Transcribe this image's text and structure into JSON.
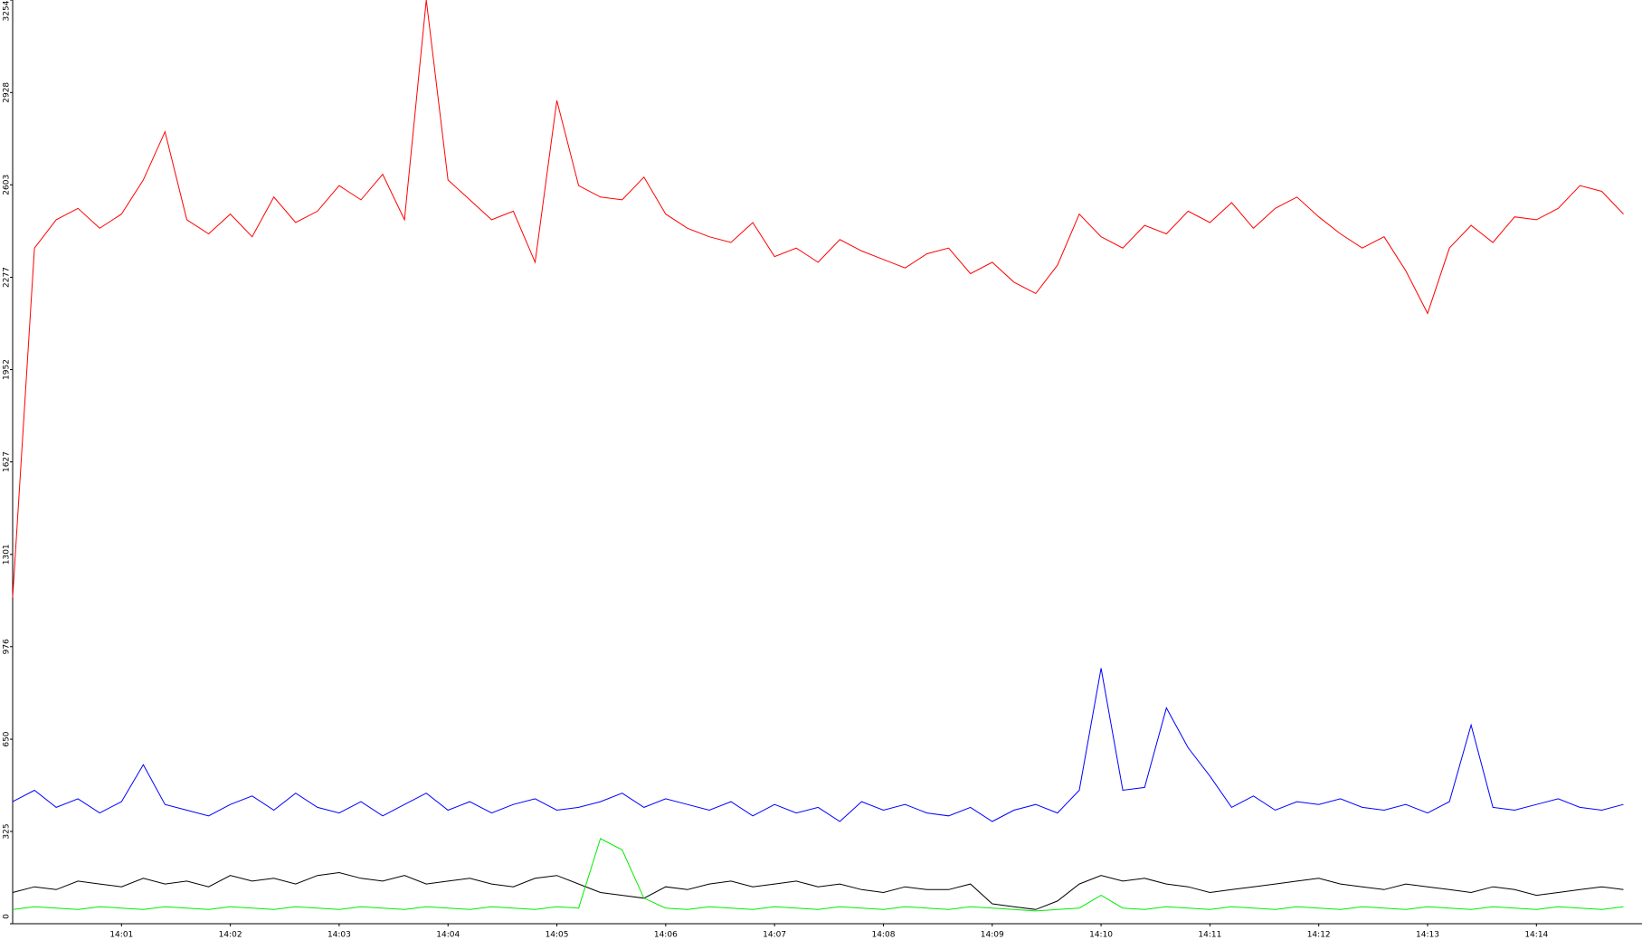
{
  "chart_data": {
    "type": "line",
    "x": [
      0,
      0.2,
      0.4,
      0.6,
      0.8,
      1,
      1.2,
      1.4,
      1.6,
      1.8,
      2,
      2.2,
      2.4,
      2.6,
      2.8,
      3,
      3.2,
      3.4,
      3.6,
      3.8,
      4,
      4.2,
      4.4,
      4.6,
      4.8,
      5,
      5.2,
      5.4,
      5.6,
      5.8,
      6,
      6.2,
      6.4,
      6.6,
      6.8,
      7,
      7.2,
      7.4,
      7.6,
      7.8,
      8,
      8.2,
      8.4,
      8.6,
      8.8,
      9,
      9.2,
      9.4,
      9.6,
      9.8,
      10,
      10.2,
      10.4,
      10.6,
      10.8,
      11,
      11.2,
      11.4,
      11.6,
      11.8,
      12,
      12.2,
      12.4,
      12.6,
      12.8,
      13,
      13.2,
      13.4,
      13.6,
      13.8,
      14,
      14.2,
      14.4,
      14.6,
      14.8
    ],
    "series": [
      {
        "color": "#ff0000",
        "values": [
          1150,
          2380,
          2480,
          2520,
          2450,
          2500,
          2620,
          2790,
          2480,
          2430,
          2500,
          2420,
          2560,
          2470,
          2510,
          2600,
          2550,
          2640,
          2480,
          3254,
          2620,
          2550,
          2480,
          2510,
          2330,
          2900,
          2600,
          2560,
          2550,
          2630,
          2500,
          2450,
          2420,
          2400,
          2470,
          2350,
          2380,
          2330,
          2410,
          2370,
          2340,
          2310,
          2360,
          2380,
          2290,
          2330,
          2260,
          2220,
          2320,
          2500,
          2420,
          2380,
          2460,
          2430,
          2510,
          2470,
          2540,
          2450,
          2520,
          2560,
          2490,
          2430,
          2380,
          2420,
          2300,
          2150,
          2380,
          2460,
          2400,
          2490,
          2480,
          2520,
          2600,
          2580,
          2500
        ]
      },
      {
        "color": "#0000ff",
        "values": [
          430,
          470,
          410,
          440,
          390,
          430,
          560,
          420,
          400,
          380,
          420,
          450,
          400,
          460,
          410,
          390,
          430,
          380,
          420,
          460,
          400,
          430,
          390,
          420,
          440,
          400,
          410,
          430,
          460,
          410,
          440,
          420,
          400,
          430,
          380,
          420,
          390,
          410,
          360,
          430,
          400,
          420,
          390,
          380,
          410,
          360,
          400,
          420,
          390,
          470,
          900,
          470,
          480,
          760,
          620,
          520,
          410,
          450,
          400,
          430,
          420,
          440,
          410,
          400,
          420,
          390,
          430,
          700,
          410,
          400,
          420,
          440,
          410,
          400,
          420
        ]
      },
      {
        "color": "#000000",
        "values": [
          110,
          130,
          120,
          150,
          140,
          130,
          160,
          140,
          150,
          130,
          170,
          150,
          160,
          140,
          170,
          180,
          160,
          150,
          170,
          140,
          150,
          160,
          140,
          130,
          160,
          170,
          140,
          110,
          100,
          90,
          130,
          120,
          140,
          150,
          130,
          140,
          150,
          130,
          140,
          120,
          110,
          130,
          120,
          120,
          140,
          70,
          60,
          50,
          80,
          140,
          170,
          150,
          160,
          140,
          130,
          110,
          120,
          130,
          140,
          150,
          160,
          140,
          130,
          120,
          140,
          130,
          120,
          110,
          130,
          120,
          100,
          110,
          120,
          130,
          120
        ]
      },
      {
        "color": "#00ee00",
        "values": [
          50,
          60,
          55,
          50,
          60,
          55,
          50,
          60,
          55,
          50,
          60,
          55,
          50,
          60,
          55,
          50,
          60,
          55,
          50,
          60,
          55,
          50,
          60,
          55,
          50,
          60,
          55,
          300,
          260,
          90,
          55,
          50,
          60,
          55,
          50,
          60,
          55,
          50,
          60,
          55,
          50,
          60,
          55,
          50,
          60,
          55,
          50,
          45,
          50,
          55,
          100,
          55,
          50,
          60,
          55,
          50,
          60,
          55,
          50,
          60,
          55,
          50,
          60,
          55,
          50,
          60,
          55,
          50,
          60,
          55,
          50,
          60,
          55,
          50,
          60
        ]
      }
    ],
    "xlim": [
      0,
      14.97
    ],
    "ylim": [
      0,
      3254
    ],
    "yticks": [
      0,
      325,
      650,
      976,
      1301,
      1627,
      1952,
      2277,
      2603,
      2928,
      3254
    ],
    "xticks": [
      {
        "value": 1,
        "label": "14:01"
      },
      {
        "value": 2,
        "label": "14:02"
      },
      {
        "value": 3,
        "label": "14:03"
      },
      {
        "value": 4,
        "label": "14:04"
      },
      {
        "value": 5,
        "label": "14:05"
      },
      {
        "value": 6,
        "label": "14:06"
      },
      {
        "value": 7,
        "label": "14:07"
      },
      {
        "value": 8,
        "label": "14:08"
      },
      {
        "value": 9,
        "label": "14:09"
      },
      {
        "value": 10,
        "label": "14:10"
      },
      {
        "value": 11,
        "label": "14:11"
      },
      {
        "value": 12,
        "label": "14:12"
      },
      {
        "value": 13,
        "label": "14:13"
      },
      {
        "value": 14,
        "label": "14:14"
      }
    ]
  }
}
